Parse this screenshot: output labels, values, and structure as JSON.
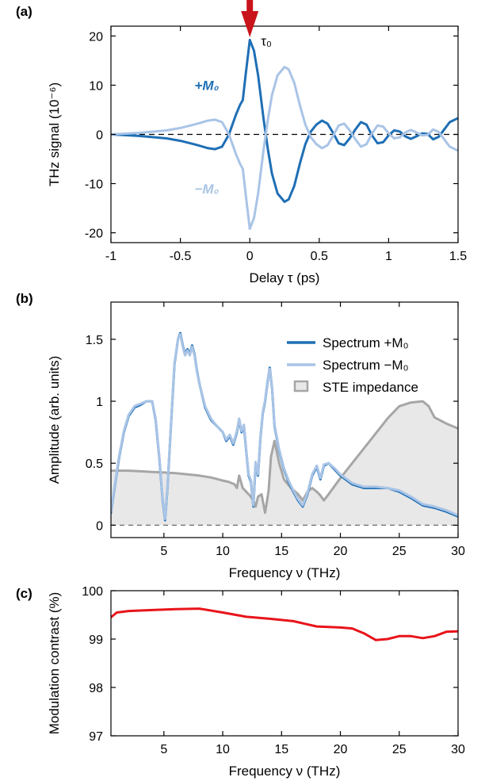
{
  "colors": {
    "plus": "#1f6fb5",
    "minus": "#a9c4e6",
    "impedance_line": "#a6a6a6",
    "impedance_fill": "#e8e8e8",
    "contrast": "#e8141a",
    "arrow": "#c8141a",
    "zero_line": "#000000"
  },
  "chart_data": [
    {
      "id": "a",
      "panel_label": "(a)",
      "type": "line",
      "xlabel": "Delay τ (ps)",
      "ylabel": "THz signal (10⁻⁶)",
      "xlim": [
        -1,
        1.5
      ],
      "ylim": [
        -22,
        22
      ],
      "xticks": [
        -1,
        -0.5,
        0,
        0.5,
        1,
        1.5
      ],
      "xtick_labels": [
        "-1",
        "-0.5",
        "0",
        "0.5",
        "1",
        "1.5"
      ],
      "yticks": [
        -20,
        -10,
        0,
        10,
        20
      ],
      "ytick_labels": [
        "-20",
        "-10",
        "0",
        "10",
        "20"
      ],
      "zero_line": true,
      "annotations": [
        {
          "text": "τ₀",
          "x": 0.08,
          "y": 19
        },
        {
          "text": "+M₀",
          "series": "plus",
          "x": -0.31,
          "y": 10
        },
        {
          "text": "−M₀",
          "series": "minus",
          "x": -0.31,
          "y": -11
        }
      ],
      "arrow": {
        "x": 0
      },
      "series": [
        {
          "key": "plus",
          "x": [
            -1,
            -0.8,
            -0.6,
            -0.5,
            -0.4,
            -0.3,
            -0.25,
            -0.2,
            -0.15,
            -0.1,
            -0.07,
            -0.05,
            -0.03,
            0,
            0.03,
            0.06,
            0.1,
            0.13,
            0.16,
            0.2,
            0.25,
            0.28,
            0.32,
            0.36,
            0.4,
            0.44,
            0.48,
            0.52,
            0.56,
            0.6,
            0.64,
            0.68,
            0.72,
            0.76,
            0.8,
            0.84,
            0.88,
            0.92,
            0.96,
            1.0,
            1.04,
            1.08,
            1.12,
            1.16,
            1.2,
            1.24,
            1.28,
            1.32,
            1.36,
            1.4,
            1.44,
            1.5
          ],
          "y": [
            0,
            -0.3,
            -0.8,
            -1.3,
            -2.0,
            -2.8,
            -3.0,
            -2.5,
            0,
            4,
            6,
            7,
            12,
            19.2,
            17,
            12,
            3,
            -3,
            -8,
            -12,
            -13.7,
            -13.2,
            -10.5,
            -6,
            -2,
            0.6,
            2.0,
            2.8,
            2.2,
            0.3,
            -1.8,
            -2.2,
            -0.8,
            1.0,
            2.5,
            2.0,
            -0.2,
            -1.8,
            -1.6,
            -0.2,
            0.8,
            0.6,
            -0.4,
            -0.9,
            -0.4,
            0.2,
            0.1,
            -1.0,
            -0.5,
            1.0,
            2.5,
            3.3
          ]
        },
        {
          "key": "minus",
          "x": [
            -1,
            -0.8,
            -0.6,
            -0.5,
            -0.4,
            -0.3,
            -0.25,
            -0.2,
            -0.15,
            -0.1,
            -0.07,
            -0.05,
            -0.03,
            0,
            0.03,
            0.06,
            0.1,
            0.13,
            0.16,
            0.2,
            0.25,
            0.28,
            0.32,
            0.36,
            0.4,
            0.44,
            0.48,
            0.52,
            0.56,
            0.6,
            0.64,
            0.68,
            0.72,
            0.76,
            0.8,
            0.84,
            0.88,
            0.92,
            0.96,
            1.0,
            1.04,
            1.08,
            1.12,
            1.16,
            1.2,
            1.24,
            1.28,
            1.32,
            1.36,
            1.4,
            1.44,
            1.5
          ],
          "y": [
            0,
            0.3,
            0.8,
            1.3,
            2.0,
            2.8,
            3.0,
            2.5,
            0,
            -4,
            -6,
            -7,
            -12,
            -19.2,
            -17,
            -12,
            -3,
            3,
            8,
            12,
            13.7,
            13.2,
            10.5,
            6,
            2,
            -0.6,
            -2.0,
            -2.8,
            -2.2,
            -0.3,
            1.8,
            2.2,
            0.8,
            -1.0,
            -2.5,
            -2.0,
            0.2,
            1.8,
            1.6,
            0.2,
            -0.8,
            -0.6,
            0.4,
            0.9,
            0.4,
            -0.2,
            -0.1,
            1.0,
            0.5,
            -1.0,
            -2.5,
            -3.3
          ]
        }
      ]
    },
    {
      "id": "b",
      "panel_label": "(b)",
      "type": "line",
      "xlabel": "Frequency ν (THz)",
      "ylabel": "Amplitude (arb. units)",
      "xlim": [
        0.5,
        30
      ],
      "ylim": [
        -0.1,
        1.8
      ],
      "xticks": [
        5,
        10,
        15,
        20,
        25,
        30
      ],
      "xtick_labels": [
        "5",
        "10",
        "15",
        "20",
        "25",
        "30"
      ],
      "yticks": [
        0,
        0.5,
        1,
        1.5
      ],
      "ytick_labels": [
        "0",
        "0.5",
        "1",
        "1.5"
      ],
      "zero_line": true,
      "legend": {
        "placement": "top-right",
        "entries": [
          {
            "key": "plus",
            "label": "Spectrum +M₀"
          },
          {
            "key": "minus",
            "label": "Spectrum −M₀"
          },
          {
            "key": "impedance",
            "label": "STE impedance"
          }
        ]
      },
      "series": [
        {
          "key": "impedance",
          "x": [
            0.5,
            1,
            2,
            3,
            4,
            5,
            6,
            7,
            8,
            9,
            10,
            10.5,
            11,
            11.2,
            11.4,
            11.7,
            12,
            12.3,
            12.6,
            12.8,
            13.0,
            13.3,
            13.6,
            13.9,
            14.1,
            14.4,
            14.8,
            15.2,
            15.8,
            16.4,
            16.8,
            17.2,
            17.6,
            18.0,
            18.3,
            18.6,
            19,
            20,
            21,
            22,
            23,
            24,
            25,
            26,
            27,
            27.5,
            28,
            29,
            30
          ],
          "y": [
            0.44,
            0.44,
            0.44,
            0.435,
            0.43,
            0.425,
            0.42,
            0.41,
            0.4,
            0.385,
            0.36,
            0.35,
            0.33,
            0.3,
            0.4,
            0.3,
            0.27,
            0.24,
            0.2,
            0.15,
            0.23,
            0.25,
            0.1,
            0.28,
            0.55,
            0.68,
            0.5,
            0.37,
            0.3,
            0.25,
            0.2,
            0.27,
            0.3,
            0.27,
            0.24,
            0.2,
            0.25,
            0.38,
            0.5,
            0.62,
            0.74,
            0.86,
            0.96,
            0.99,
            1.0,
            0.96,
            0.87,
            0.82,
            0.78
          ]
        },
        {
          "key": "plus",
          "x": [
            0.5,
            0.8,
            1.2,
            1.6,
            2,
            2.5,
            3,
            3.5,
            4,
            4.3,
            4.6,
            4.9,
            5.1,
            5.3,
            5.6,
            5.9,
            6.2,
            6.4,
            6.6,
            6.8,
            7.0,
            7.2,
            7.4,
            7.6,
            7.8,
            8,
            8.5,
            9,
            9.5,
            10,
            10.3,
            10.6,
            10.9,
            11.2,
            11.4,
            11.6,
            11.8,
            12.0,
            12.2,
            12.4,
            12.6,
            12.8,
            13.0,
            13.2,
            13.4,
            13.6,
            13.8,
            14.0,
            14.2,
            14.4,
            14.8,
            15.2,
            15.6,
            16.0,
            16.4,
            16.8,
            17.2,
            17.6,
            18.0,
            18.3,
            18.6,
            19,
            19.5,
            20,
            21,
            22,
            23,
            24,
            25,
            26,
            27,
            28,
            29,
            30
          ],
          "y": [
            0.1,
            0.3,
            0.55,
            0.75,
            0.88,
            0.95,
            0.97,
            1.0,
            1.0,
            0.85,
            0.55,
            0.2,
            0.04,
            0.3,
            0.8,
            1.3,
            1.5,
            1.55,
            1.45,
            1.38,
            1.42,
            1.38,
            1.45,
            1.38,
            1.25,
            1.15,
            0.95,
            0.85,
            0.8,
            0.75,
            0.68,
            0.72,
            0.65,
            0.75,
            0.85,
            0.75,
            0.8,
            0.6,
            0.4,
            0.35,
            0.15,
            0.5,
            0.4,
            0.7,
            0.9,
            1.0,
            1.15,
            1.27,
            1.1,
            0.8,
            0.6,
            0.45,
            0.35,
            0.27,
            0.2,
            0.15,
            0.25,
            0.4,
            0.47,
            0.37,
            0.48,
            0.5,
            0.45,
            0.4,
            0.33,
            0.3,
            0.3,
            0.3,
            0.27,
            0.22,
            0.16,
            0.14,
            0.11,
            0.07
          ]
        },
        {
          "key": "minus",
          "x": [
            0.5,
            0.8,
            1.2,
            1.6,
            2,
            2.5,
            3,
            3.5,
            4,
            4.3,
            4.6,
            4.9,
            5.1,
            5.3,
            5.6,
            5.9,
            6.2,
            6.4,
            6.6,
            6.8,
            7.0,
            7.2,
            7.4,
            7.6,
            7.8,
            8,
            8.5,
            9,
            9.5,
            10,
            10.3,
            10.6,
            10.9,
            11.2,
            11.4,
            11.6,
            11.8,
            12.0,
            12.2,
            12.4,
            12.6,
            12.8,
            13.0,
            13.2,
            13.4,
            13.6,
            13.8,
            14.0,
            14.2,
            14.4,
            14.8,
            15.2,
            15.6,
            16.0,
            16.4,
            16.8,
            17.2,
            17.6,
            18.0,
            18.3,
            18.6,
            19,
            19.5,
            20,
            21,
            22,
            23,
            24,
            25,
            26,
            27,
            28,
            29,
            30
          ],
          "y": [
            0.11,
            0.31,
            0.56,
            0.76,
            0.89,
            0.96,
            0.98,
            1.0,
            1.0,
            0.86,
            0.56,
            0.21,
            0.05,
            0.31,
            0.81,
            1.31,
            1.5,
            1.54,
            1.44,
            1.37,
            1.41,
            1.37,
            1.44,
            1.37,
            1.24,
            1.15,
            0.96,
            0.86,
            0.8,
            0.75,
            0.69,
            0.73,
            0.66,
            0.76,
            0.86,
            0.76,
            0.81,
            0.61,
            0.41,
            0.36,
            0.16,
            0.51,
            0.41,
            0.71,
            0.91,
            1.01,
            1.16,
            1.26,
            1.11,
            0.81,
            0.61,
            0.46,
            0.36,
            0.28,
            0.21,
            0.16,
            0.26,
            0.41,
            0.48,
            0.38,
            0.49,
            0.5,
            0.46,
            0.41,
            0.34,
            0.31,
            0.31,
            0.3,
            0.28,
            0.23,
            0.17,
            0.15,
            0.12,
            0.08
          ]
        }
      ]
    },
    {
      "id": "c",
      "panel_label": "(c)",
      "type": "line",
      "xlabel": "Frequency ν (THz)",
      "ylabel": "Modulation contrast (%)",
      "xlim": [
        0.5,
        30
      ],
      "ylim": [
        97,
        100
      ],
      "xticks": [
        5,
        10,
        15,
        20,
        25,
        30
      ],
      "xtick_labels": [
        "5",
        "10",
        "15",
        "20",
        "25",
        "30"
      ],
      "yticks": [
        97,
        98,
        99,
        100
      ],
      "ytick_labels": [
        "97",
        "98",
        "99",
        "100"
      ],
      "series": [
        {
          "key": "contrast",
          "x": [
            0.5,
            1,
            2,
            4,
            6,
            8,
            10,
            12,
            14,
            16,
            18,
            20,
            21,
            22,
            23,
            24,
            25,
            26,
            27,
            28,
            29,
            30
          ],
          "y": [
            99.45,
            99.55,
            99.58,
            99.6,
            99.62,
            99.63,
            99.55,
            99.46,
            99.42,
            99.37,
            99.26,
            99.24,
            99.22,
            99.12,
            98.98,
            99.0,
            99.06,
            99.06,
            99.02,
            99.06,
            99.15,
            99.16
          ]
        }
      ]
    }
  ]
}
